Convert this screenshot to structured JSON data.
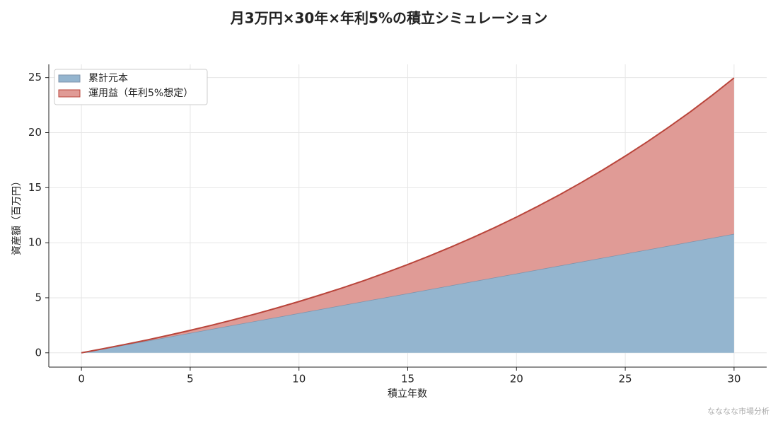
{
  "chart_data": {
    "type": "stacked_area",
    "title": "月3万円×30年×年利5%の積立シミュレーション",
    "x_label": "積立年数",
    "y_label": "資産額（百万円）",
    "source": "なななな市場分析",
    "x": [
      0,
      1,
      2,
      3,
      4,
      5,
      6,
      7,
      8,
      9,
      10,
      11,
      12,
      13,
      14,
      15,
      16,
      17,
      18,
      19,
      20,
      21,
      22,
      23,
      24,
      25,
      26,
      27,
      28,
      29,
      30
    ],
    "series": [
      {
        "name": "累計元本",
        "color": "#94b5cf",
        "edge_color": "#7e93ab",
        "values": [
          0,
          0.36,
          0.72,
          1.08,
          1.44,
          1.8,
          2.16,
          2.52,
          2.88,
          3.24,
          3.6,
          3.96,
          4.32,
          4.68,
          5.04,
          5.4,
          5.76,
          6.12,
          6.48,
          6.84,
          7.2,
          7.56,
          7.92,
          8.28,
          8.64,
          9.0,
          9.36,
          9.72,
          10.08,
          10.44,
          10.8
        ]
      },
      {
        "name": "運用益（年利5%想定）",
        "color": "#e09b96",
        "edge_color": "#b9453b",
        "values": [
          0,
          0.01,
          0.04,
          0.08,
          0.15,
          0.24,
          0.35,
          0.49,
          0.65,
          0.84,
          1.06,
          1.31,
          1.58,
          1.89,
          2.24,
          2.62,
          3.04,
          3.5,
          4.0,
          4.54,
          5.13,
          5.77,
          6.46,
          7.21,
          8.01,
          8.87,
          9.79,
          10.78,
          11.83,
          12.96,
          14.17
        ]
      }
    ],
    "xlim": [
      -1.5,
      31.5
    ],
    "xticks": [
      0,
      5,
      10,
      15,
      20,
      25,
      30
    ],
    "ylim": [
      -1.3,
      26.2
    ],
    "yticks": [
      0,
      5,
      10,
      15,
      20,
      25
    ],
    "grid": true,
    "legend": "upper left"
  }
}
